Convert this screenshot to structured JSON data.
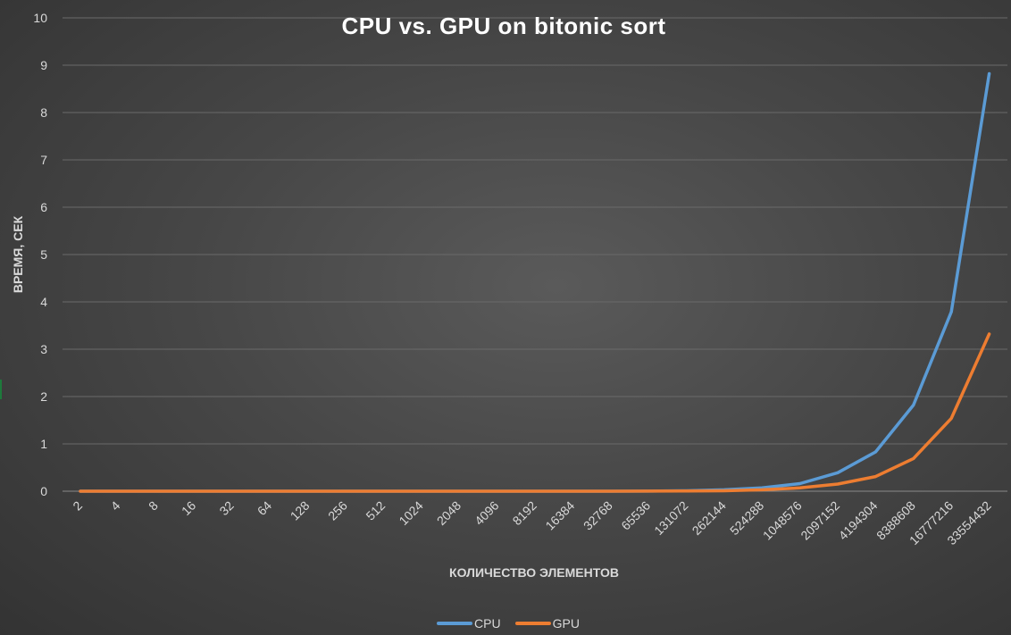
{
  "chart_data": {
    "type": "line",
    "title": "CPU vs. GPU on bitonic sort",
    "xlabel": "КОЛИЧЕСТВО ЭЛЕМЕНТОВ",
    "ylabel": "ВРЕМЯ, СЕК",
    "ylim": [
      0,
      10
    ],
    "yticks": [
      0,
      1,
      2,
      3,
      4,
      5,
      6,
      7,
      8,
      9,
      10
    ],
    "grid": "horizontal",
    "legend_position": "bottom",
    "categories": [
      "2",
      "4",
      "8",
      "16",
      "32",
      "64",
      "128",
      "256",
      "512",
      "1024",
      "2048",
      "4096",
      "8192",
      "16384",
      "32768",
      "65536",
      "131072",
      "262144",
      "524288",
      "1048576",
      "2097152",
      "4194304",
      "8388608",
      "16777216",
      "33554432"
    ],
    "series": [
      {
        "name": "CPU",
        "color": "#5b9bd5",
        "values": [
          0,
          0,
          0,
          0,
          0,
          0,
          0,
          0,
          0,
          0,
          0,
          0,
          0,
          0,
          0,
          0.001,
          0.01,
          0.03,
          0.07,
          0.16,
          0.39,
          0.83,
          1.82,
          3.79,
          8.82
        ]
      },
      {
        "name": "GPU",
        "color": "#ed7d31",
        "values": [
          0,
          0,
          0,
          0,
          0,
          0,
          0,
          0,
          0,
          0,
          0,
          0,
          0,
          0,
          0,
          0.001,
          0.005,
          0.01,
          0.03,
          0.07,
          0.15,
          0.31,
          0.69,
          1.54,
          3.32
        ]
      }
    ]
  }
}
